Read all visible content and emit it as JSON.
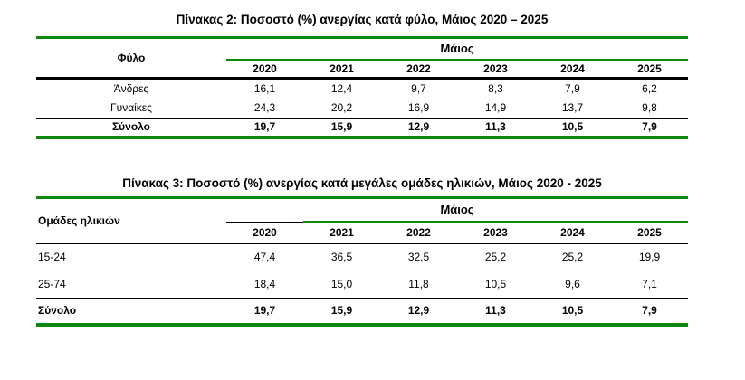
{
  "colors": {
    "accent_green": "#0e870e",
    "rule_black": "#000000",
    "text": "#000000"
  },
  "tables": [
    {
      "title": "Πίνακας 2: Ποσοστό (%) ανεργίας κατά φύλο, Μάιος 2020 – 2025",
      "row_header_label": "Φύλο",
      "col_group_label": "Μάιος",
      "years": [
        "2020",
        "2021",
        "2022",
        "2023",
        "2024",
        "2025"
      ],
      "rows": [
        {
          "label": "Άνδρες",
          "values": [
            "16,1",
            "12,4",
            "9,7",
            "8,3",
            "7,9",
            "6,2"
          ]
        },
        {
          "label": "Γυναίκες",
          "values": [
            "24,3",
            "20,2",
            "16,9",
            "14,9",
            "13,7",
            "9,8"
          ]
        },
        {
          "label": "Σύνολο",
          "values": [
            "19,7",
            "15,9",
            "12,9",
            "11,3",
            "10,5",
            "7,9"
          ]
        }
      ]
    },
    {
      "title": "Πίνακας 3: Ποσοστό (%) ανεργίας κατά μεγάλες ομάδες ηλικιών, Μάιος 2020 - 2025",
      "row_header_label": "Ομάδες ηλικιών",
      "col_group_label": "Μάιος",
      "years": [
        "2020",
        "2021",
        "2022",
        "2023",
        "2024",
        "2025"
      ],
      "rows": [
        {
          "label": "15-24",
          "values": [
            "47,4",
            "36,5",
            "32,5",
            "25,2",
            "25,2",
            "19,9"
          ]
        },
        {
          "label": "25-74",
          "values": [
            "18,4",
            "15,0",
            "11,8",
            "10,5",
            "9,6",
            "7,1"
          ]
        },
        {
          "label": "Σύνολο",
          "values": [
            "19,7",
            "15,9",
            "12,9",
            "11,3",
            "10,5",
            "7,9"
          ]
        }
      ]
    }
  ],
  "chart_data": [
    {
      "type": "table",
      "title": "Πίνακας 2: Ποσοστό (%) ανεργίας κατά φύλο, Μάιος 2020 – 2025",
      "categories": [
        "2020",
        "2021",
        "2022",
        "2023",
        "2024",
        "2025"
      ],
      "series": [
        {
          "name": "Άνδρες",
          "values": [
            16.1,
            12.4,
            9.7,
            8.3,
            7.9,
            6.2
          ]
        },
        {
          "name": "Γυναίκες",
          "values": [
            24.3,
            20.2,
            16.9,
            14.9,
            13.7,
            9.8
          ]
        },
        {
          "name": "Σύνολο",
          "values": [
            19.7,
            15.9,
            12.9,
            11.3,
            10.5,
            7.9
          ]
        }
      ]
    },
    {
      "type": "table",
      "title": "Πίνακας 3: Ποσοστό (%) ανεργίας κατά μεγάλες ομάδες ηλικιών, Μάιος 2020 - 2025",
      "categories": [
        "2020",
        "2021",
        "2022",
        "2023",
        "2024",
        "2025"
      ],
      "series": [
        {
          "name": "15-24",
          "values": [
            47.4,
            36.5,
            32.5,
            25.2,
            25.2,
            19.9
          ]
        },
        {
          "name": "25-74",
          "values": [
            18.4,
            15.0,
            11.8,
            10.5,
            9.6,
            7.1
          ]
        },
        {
          "name": "Σύνολο",
          "values": [
            19.7,
            15.9,
            12.9,
            11.3,
            10.5,
            7.9
          ]
        }
      ]
    }
  ]
}
